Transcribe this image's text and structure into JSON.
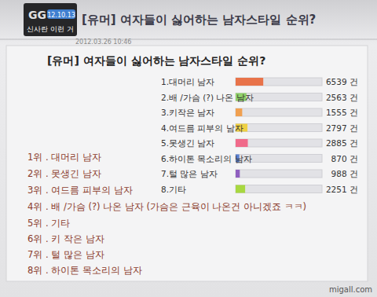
{
  "header": {
    "title": "[유머] 여자들이 싫어하는 남자스타일 순위?",
    "logo": "GG",
    "date": "12.10.13",
    "caption": "신사란 이런 거"
  },
  "post": {
    "datetime": "2012.03.26 10:46"
  },
  "chart_data": {
    "type": "bar",
    "orientation": "horizontal",
    "title": "[유머] 여자들이 싫어하는 남자스타일 순위?",
    "categories": [
      "1.대머리 남자",
      "2.배 /가슴 (?) 나온 남자",
      "3.키작은 남자",
      "4.여드름 피부의 남자",
      "5.못생긴 남자",
      "6.하이톤 목소리의 남자",
      "7.털 많은 남자",
      "8.기타"
    ],
    "values": [
      6539,
      2563,
      1555,
      2797,
      2885,
      870,
      988,
      2251
    ],
    "value_labels": [
      "6539 건",
      "2563 건",
      "1555 건",
      "2797 건",
      "2885 건",
      "870 건",
      "988 건",
      "2251 건"
    ],
    "colors": [
      "#e8734a",
      "#8fd16a",
      "#f0a050",
      "#efd044",
      "#f06a8a",
      "#5a80d0",
      "#9060c0",
      "#a8d840"
    ],
    "xlim": [
      0,
      20448
    ],
    "data_labels": true,
    "grid": false,
    "tick_labels": false
  },
  "ranking": [
    "1위 . 대머리 남자",
    "2위 . 못생긴 남자",
    "3위 . 여드름 피부의 남자",
    "4위 . 배 /가슴 (?) 나온 남자 (가슴은 근육이 나온건 아니겠죠 ㅋㅋ)",
    "5위 . 기타",
    "6위 . 키 작은 남자",
    "7위 . 털 많은 남자",
    "8위 . 하이톤 목소리의 남자"
  ],
  "watermark": "migall.com"
}
